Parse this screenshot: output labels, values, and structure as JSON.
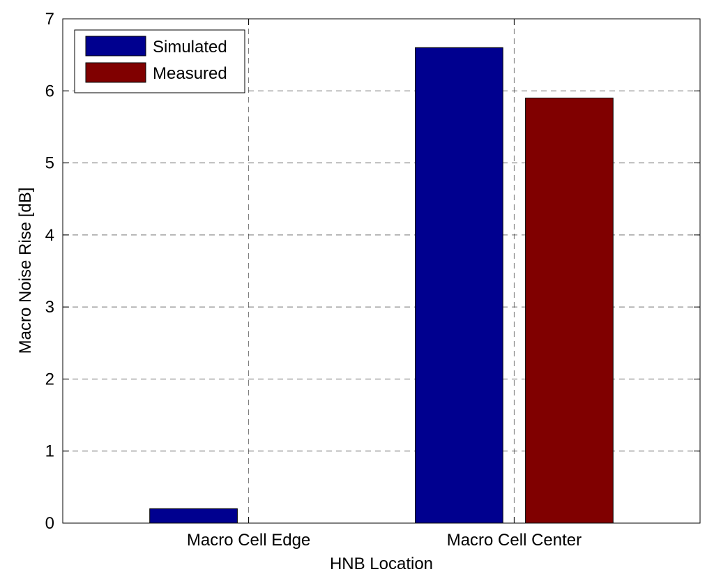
{
  "chart_data": {
    "type": "bar",
    "title": "",
    "xlabel": "HNB Location",
    "ylabel": "Macro Noise Rise [dB]",
    "categories": [
      "Macro Cell Edge",
      "Macro Cell Center"
    ],
    "series": [
      {
        "name": "Simulated",
        "values": [
          0.2,
          6.6
        ],
        "color": "#00008f"
      },
      {
        "name": "Measured",
        "values": [
          0.0,
          5.9
        ],
        "color": "#800000"
      }
    ],
    "ylim": [
      0,
      7
    ],
    "yticks": [
      "0",
      "1",
      "2",
      "3",
      "4",
      "5",
      "6",
      "7"
    ],
    "grid": true,
    "legend_position": "top-left"
  }
}
